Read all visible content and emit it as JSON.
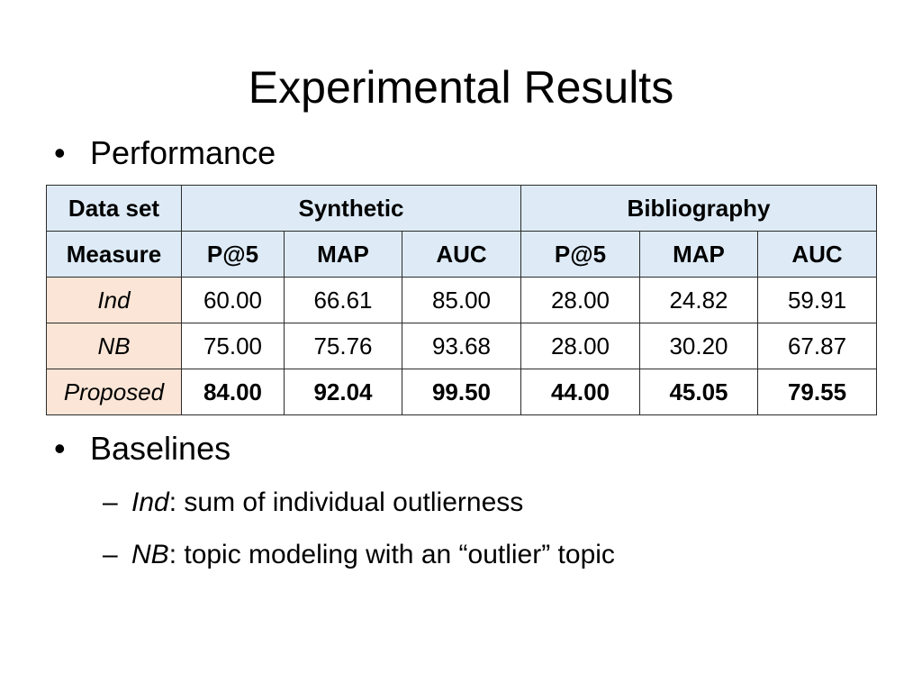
{
  "slide": {
    "title": "Experimental Results",
    "bullets": {
      "performance": "Performance",
      "baselines": "Baselines"
    },
    "baseline_items": [
      {
        "term": "Ind",
        "description": ": sum of individual outlierness"
      },
      {
        "term": "NB",
        "description": ": topic modeling with an “outlier” topic"
      }
    ],
    "bullet_glyph": "•",
    "dash_glyph": "–"
  },
  "table": {
    "dataset_label": "Data set",
    "measure_label": "Measure",
    "datasets": [
      "Synthetic",
      "Bibliography"
    ],
    "measures": [
      "P@5",
      "MAP",
      "AUC",
      "P@5",
      "MAP",
      "AUC"
    ],
    "rows": [
      {
        "method": "Ind",
        "values": [
          "60.00",
          "66.61",
          "85.00",
          "28.00",
          "24.82",
          "59.91"
        ],
        "bold": false
      },
      {
        "method": "NB",
        "values": [
          "75.00",
          "75.76",
          "93.68",
          "28.00",
          "30.20",
          "67.87"
        ],
        "bold": false
      },
      {
        "method": "Proposed",
        "values": [
          "84.00",
          "92.04",
          "99.50",
          "44.00",
          "45.05",
          "79.55"
        ],
        "bold": true
      }
    ]
  },
  "colors": {
    "header_fill": "#deebf7",
    "method_fill": "#fbe5d6",
    "border": "#2b2b2b"
  }
}
